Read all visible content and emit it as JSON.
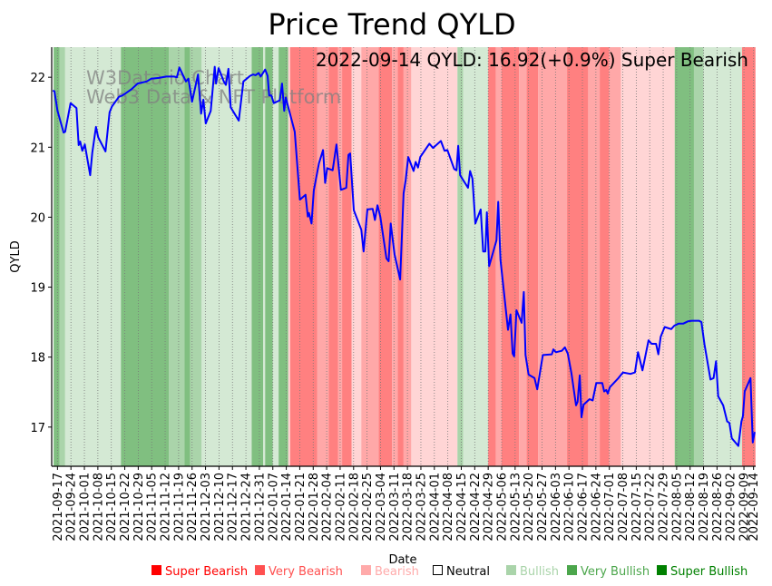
{
  "chart_data": {
    "type": "line",
    "title": "Price Trend QYLD",
    "annotation": "2022-09-14 QYLD: 16.92(+0.9%) Super Bearish",
    "xlabel": "Date",
    "ylabel": "QYLD",
    "watermark": [
      "W3Data.io Chart",
      "Web3 Data & NFT Platform"
    ],
    "x_origin_date": "2021-09-17",
    "xlim_days": [
      -3,
      363.1
    ],
    "ylim": [
      16.44,
      22.43
    ],
    "yticks": [
      "17",
      "18",
      "19",
      "20",
      "21",
      "22"
    ],
    "xtick_labels": [
      "2021-09-17",
      "2021-09-24",
      "2021-10-01",
      "2021-10-08",
      "2021-10-15",
      "2021-10-22",
      "2021-10-29",
      "2021-11-05",
      "2021-11-12",
      "2021-11-19",
      "2021-11-26",
      "2021-12-03",
      "2021-12-10",
      "2021-12-17",
      "2021-12-24",
      "2021-12-31",
      "2022-01-07",
      "2022-01-14",
      "2022-01-21",
      "2022-01-28",
      "2022-02-04",
      "2022-02-11",
      "2022-02-18",
      "2022-02-25",
      "2022-03-04",
      "2022-03-11",
      "2022-03-18",
      "2022-03-25",
      "2022-04-01",
      "2022-04-08",
      "2022-04-15",
      "2022-04-22",
      "2022-04-29",
      "2022-05-06",
      "2022-05-13",
      "2022-05-20",
      "2022-05-27",
      "2022-06-03",
      "2022-06-10",
      "2022-06-17",
      "2022-06-24",
      "2022-07-01",
      "2022-07-08",
      "2022-07-15",
      "2022-07-22",
      "2022-07-29",
      "2022-08-05",
      "2022-08-12",
      "2022-08-19",
      "2022-08-26",
      "2022-09-02",
      "2022-09-09",
      "2022-09-14"
    ],
    "grid": "vertical-dotted",
    "series": [
      {
        "name": "QYLD",
        "color": "#0000ff",
        "points_day_price": [
          [
            -2.4,
            21.81
          ],
          [
            -1.6,
            21.8
          ],
          [
            0,
            21.52
          ],
          [
            3.2,
            21.21
          ],
          [
            4,
            21.22
          ],
          [
            6.8,
            21.63
          ],
          [
            9.9,
            21.56
          ],
          [
            11,
            21.03
          ],
          [
            11.8,
            21.08
          ],
          [
            12.9,
            20.95
          ],
          [
            14.2,
            21.04
          ],
          [
            17,
            20.6
          ],
          [
            18.1,
            20.92
          ],
          [
            20,
            21.29
          ],
          [
            21.2,
            21.14
          ],
          [
            25,
            20.94
          ],
          [
            27.1,
            21.5
          ],
          [
            28.3,
            21.58
          ],
          [
            31.9,
            21.72
          ],
          [
            33.8,
            21.74
          ],
          [
            35.4,
            21.77
          ],
          [
            38.5,
            21.83
          ],
          [
            41.7,
            21.91
          ],
          [
            46.4,
            21.94
          ],
          [
            48.8,
            21.98
          ],
          [
            52.7,
            21.99
          ],
          [
            56.6,
            22.01
          ],
          [
            60.6,
            22.01
          ],
          [
            62.1,
            22
          ],
          [
            63.4,
            22.14
          ],
          [
            66.8,
            21.94
          ],
          [
            68.1,
            21.98
          ],
          [
            70,
            21.65
          ],
          [
            73.1,
            22.04
          ],
          [
            74.7,
            21.48
          ],
          [
            75.9,
            21.68
          ],
          [
            77.1,
            21.34
          ],
          [
            79.7,
            21.52
          ],
          [
            81.8,
            22.15
          ],
          [
            82.5,
            21.91
          ],
          [
            83.8,
            22.13
          ],
          [
            86.5,
            21.94
          ],
          [
            87.6,
            21.89
          ],
          [
            88.9,
            22.12
          ],
          [
            90.1,
            21.57
          ],
          [
            94.3,
            21.38
          ],
          [
            96.7,
            21.94
          ],
          [
            100.2,
            22.02
          ],
          [
            101.7,
            22.04
          ],
          [
            103,
            22.03
          ],
          [
            104.6,
            22.06
          ],
          [
            105.7,
            22.01
          ],
          [
            108,
            22.11
          ],
          [
            109.3,
            22.02
          ],
          [
            110.1,
            21.74
          ],
          [
            111.2,
            21.74
          ],
          [
            112.5,
            21.63
          ],
          [
            115.6,
            21.67
          ],
          [
            116.8,
            21.91
          ],
          [
            117.9,
            21.52
          ],
          [
            118.7,
            21.71
          ],
          [
            123.4,
            21.22
          ],
          [
            126.1,
            20.25
          ],
          [
            129,
            20.32
          ],
          [
            130.2,
            20.01
          ],
          [
            130.8,
            20.06
          ],
          [
            132.1,
            19.91
          ],
          [
            133.3,
            20.38
          ],
          [
            136,
            20.77
          ],
          [
            138.1,
            20.96
          ],
          [
            139.2,
            20.49
          ],
          [
            140.3,
            20.7
          ],
          [
            143.1,
            20.67
          ],
          [
            145.1,
            21.04
          ],
          [
            147.4,
            20.39
          ],
          [
            150.2,
            20.42
          ],
          [
            151.3,
            20.89
          ],
          [
            152.2,
            20.91
          ],
          [
            154.1,
            20.1
          ],
          [
            158,
            19.82
          ],
          [
            159.2,
            19.51
          ],
          [
            161.2,
            20.11
          ],
          [
            163.9,
            20.12
          ],
          [
            165.1,
            19.96
          ],
          [
            166.4,
            20.17
          ],
          [
            167.9,
            20.01
          ],
          [
            171.1,
            19.41
          ],
          [
            172.2,
            19.37
          ],
          [
            173.3,
            19.91
          ],
          [
            175.3,
            19.47
          ],
          [
            178.2,
            19.11
          ],
          [
            180,
            20.34
          ],
          [
            181.1,
            20.53
          ],
          [
            182.4,
            20.86
          ],
          [
            185.2,
            20.66
          ],
          [
            186.3,
            20.79
          ],
          [
            187.5,
            20.71
          ],
          [
            188.7,
            20.86
          ],
          [
            193.4,
            21.05
          ],
          [
            195.3,
            20.99
          ],
          [
            199.4,
            21.09
          ],
          [
            201.3,
            20.95
          ],
          [
            202.8,
            20.96
          ],
          [
            206.3,
            20.69
          ],
          [
            207.5,
            20.67
          ],
          [
            208.4,
            21.02
          ],
          [
            209.4,
            20.6
          ],
          [
            213.5,
            20.42
          ],
          [
            214.6,
            20.66
          ],
          [
            215.8,
            20.55
          ],
          [
            217.3,
            19.91
          ],
          [
            220.1,
            20.11
          ],
          [
            221.4,
            19.51
          ],
          [
            222.5,
            19.51
          ],
          [
            223.3,
            20.07
          ],
          [
            224.5,
            19.3
          ],
          [
            227.7,
            19.61
          ],
          [
            228.3,
            19.67
          ],
          [
            229.2,
            20.22
          ],
          [
            230.4,
            19.39
          ],
          [
            234.3,
            18.39
          ],
          [
            235.6,
            18.61
          ],
          [
            236.7,
            18.05
          ],
          [
            237.5,
            18.01
          ],
          [
            238.7,
            18.67
          ],
          [
            241.4,
            18.49
          ],
          [
            242.5,
            18.93
          ],
          [
            243.4,
            18.03
          ],
          [
            245,
            17.75
          ],
          [
            248.1,
            17.7
          ],
          [
            249.5,
            17.54
          ],
          [
            252.4,
            18.03
          ],
          [
            257.1,
            18.04
          ],
          [
            257.9,
            18.11
          ],
          [
            259.2,
            18.07
          ],
          [
            262.3,
            18.09
          ],
          [
            263.9,
            18.14
          ],
          [
            265.4,
            18.05
          ],
          [
            267.3,
            17.77
          ],
          [
            269.7,
            17.31
          ],
          [
            270.5,
            17.36
          ],
          [
            271.6,
            17.74
          ],
          [
            272.5,
            17.14
          ],
          [
            273.6,
            17.32
          ],
          [
            276.7,
            17.4
          ],
          [
            278.3,
            17.38
          ],
          [
            280.2,
            17.63
          ],
          [
            283.3,
            17.63
          ],
          [
            284.3,
            17.51
          ],
          [
            285.4,
            17.53
          ],
          [
            286.2,
            17.48
          ],
          [
            287.3,
            17.57
          ],
          [
            291.7,
            17.7
          ],
          [
            294.1,
            17.78
          ],
          [
            298,
            17.76
          ],
          [
            300.3,
            17.78
          ],
          [
            301.9,
            18.07
          ],
          [
            304.2,
            17.81
          ],
          [
            307.4,
            18.24
          ],
          [
            309,
            18.19
          ],
          [
            311.3,
            18.19
          ],
          [
            312.5,
            18.04
          ],
          [
            313.7,
            18.29
          ],
          [
            315.8,
            18.43
          ],
          [
            319.2,
            18.4
          ],
          [
            320.8,
            18.45
          ],
          [
            323.1,
            18.48
          ],
          [
            325.5,
            18.48
          ],
          [
            327.8,
            18.51
          ],
          [
            329.9,
            18.52
          ],
          [
            333.7,
            18.52
          ],
          [
            334.9,
            18.5
          ],
          [
            336.5,
            18.18
          ],
          [
            339.6,
            17.68
          ],
          [
            341.2,
            17.7
          ],
          [
            342.5,
            17.94
          ],
          [
            343.6,
            17.44
          ],
          [
            346.2,
            17.31
          ],
          [
            348.3,
            17.08
          ],
          [
            349.4,
            17.06
          ],
          [
            350.7,
            16.84
          ],
          [
            354.1,
            16.73
          ],
          [
            355.7,
            17.08
          ],
          [
            356.5,
            17.16
          ],
          [
            357.4,
            17.51
          ],
          [
            360.4,
            17.7
          ],
          [
            361.6,
            16.78
          ],
          [
            362.6,
            16.93
          ]
        ]
      }
    ],
    "regime_bands": [
      [
        "2021-09-15",
        "2021-09-18",
        "super_bullish"
      ],
      [
        "2021-09-18",
        "2021-09-21",
        "very_bullish"
      ],
      [
        "2021-09-21",
        "2021-10-20",
        "bullish"
      ],
      [
        "2021-10-20",
        "2021-11-14",
        "super_bullish"
      ],
      [
        "2021-11-14",
        "2021-11-22",
        "very_bullish"
      ],
      [
        "2021-11-22",
        "2021-11-25",
        "super_bullish"
      ],
      [
        "2021-11-25",
        "2021-12-01",
        "very_bullish"
      ],
      [
        "2021-12-01",
        "2021-12-27",
        "bullish"
      ],
      [
        "2021-12-27",
        "2022-01-02",
        "super_bullish"
      ],
      [
        "2022-01-02",
        "2022-01-03",
        "bullish"
      ],
      [
        "2022-01-03",
        "2022-01-07",
        "super_bullish"
      ],
      [
        "2022-01-07",
        "2022-01-10",
        "bullish"
      ],
      [
        "2022-01-10",
        "2022-01-15",
        "super_bullish"
      ],
      [
        "2022-01-15",
        "2022-01-16",
        "bearish"
      ],
      [
        "2022-01-16",
        "2022-01-30",
        "super_bearish"
      ],
      [
        "2022-01-30",
        "2022-02-05",
        "very_bearish"
      ],
      [
        "2022-02-05",
        "2022-02-10",
        "super_bearish"
      ],
      [
        "2022-02-10",
        "2022-02-12",
        "very_bearish"
      ],
      [
        "2022-02-12",
        "2022-02-17",
        "super_bearish"
      ],
      [
        "2022-02-17",
        "2022-02-22",
        "bearish"
      ],
      [
        "2022-02-22",
        "2022-03-03",
        "very_bearish"
      ],
      [
        "2022-03-03",
        "2022-03-10",
        "super_bearish"
      ],
      [
        "2022-03-10",
        "2022-03-13",
        "very_bearish"
      ],
      [
        "2022-03-13",
        "2022-03-16",
        "super_bearish"
      ],
      [
        "2022-03-16",
        "2022-03-20",
        "very_bearish"
      ],
      [
        "2022-03-20",
        "2022-04-13",
        "bearish"
      ],
      [
        "2022-04-13",
        "2022-04-16",
        "very_bullish"
      ],
      [
        "2022-04-16",
        "2022-04-29",
        "bullish"
      ],
      [
        "2022-04-29",
        "2022-05-03",
        "super_bearish"
      ],
      [
        "2022-05-03",
        "2022-05-06",
        "very_bearish"
      ],
      [
        "2022-05-06",
        "2022-05-15",
        "super_bearish"
      ],
      [
        "2022-05-15",
        "2022-05-19",
        "very_bearish"
      ],
      [
        "2022-05-19",
        "2022-05-25",
        "super_bearish"
      ],
      [
        "2022-05-25",
        "2022-06-09",
        "very_bearish"
      ],
      [
        "2022-06-09",
        "2022-06-20",
        "super_bearish"
      ],
      [
        "2022-06-20",
        "2022-06-26",
        "very_bearish"
      ],
      [
        "2022-06-26",
        "2022-07-01",
        "super_bearish"
      ],
      [
        "2022-07-01",
        "2022-07-07",
        "very_bearish"
      ],
      [
        "2022-07-07",
        "2022-08-04",
        "bearish"
      ],
      [
        "2022-08-04",
        "2022-08-14",
        "super_bullish"
      ],
      [
        "2022-08-14",
        "2022-08-19",
        "very_bullish"
      ],
      [
        "2022-08-19",
        "2022-09-08",
        "bullish"
      ],
      [
        "2022-09-08",
        "2022-09-15",
        "super_bearish"
      ]
    ],
    "band_colors": {
      "super_bearish": "#ff8080",
      "very_bearish": "#ffa8a8",
      "bearish": "#ffd5d5",
      "bullish": "#d4e9d4",
      "very_bullish": "#aad4aa",
      "super_bullish": "#80bf80"
    },
    "legend": {
      "placement": "bottom",
      "items": [
        {
          "label": "Super Bearish",
          "color": "#ff0000"
        },
        {
          "label": "Very Bearish",
          "color": "#ff5050"
        },
        {
          "label": "Bearish",
          "color": "#ffaaaa"
        },
        {
          "label": "Neutral",
          "color": "#000000",
          "hollow": true
        },
        {
          "label": "Bullish",
          "color": "#aad4aa"
        },
        {
          "label": "Very Bullish",
          "color": "#4ca64c"
        },
        {
          "label": "Super Bullish",
          "color": "#008000"
        }
      ]
    }
  }
}
